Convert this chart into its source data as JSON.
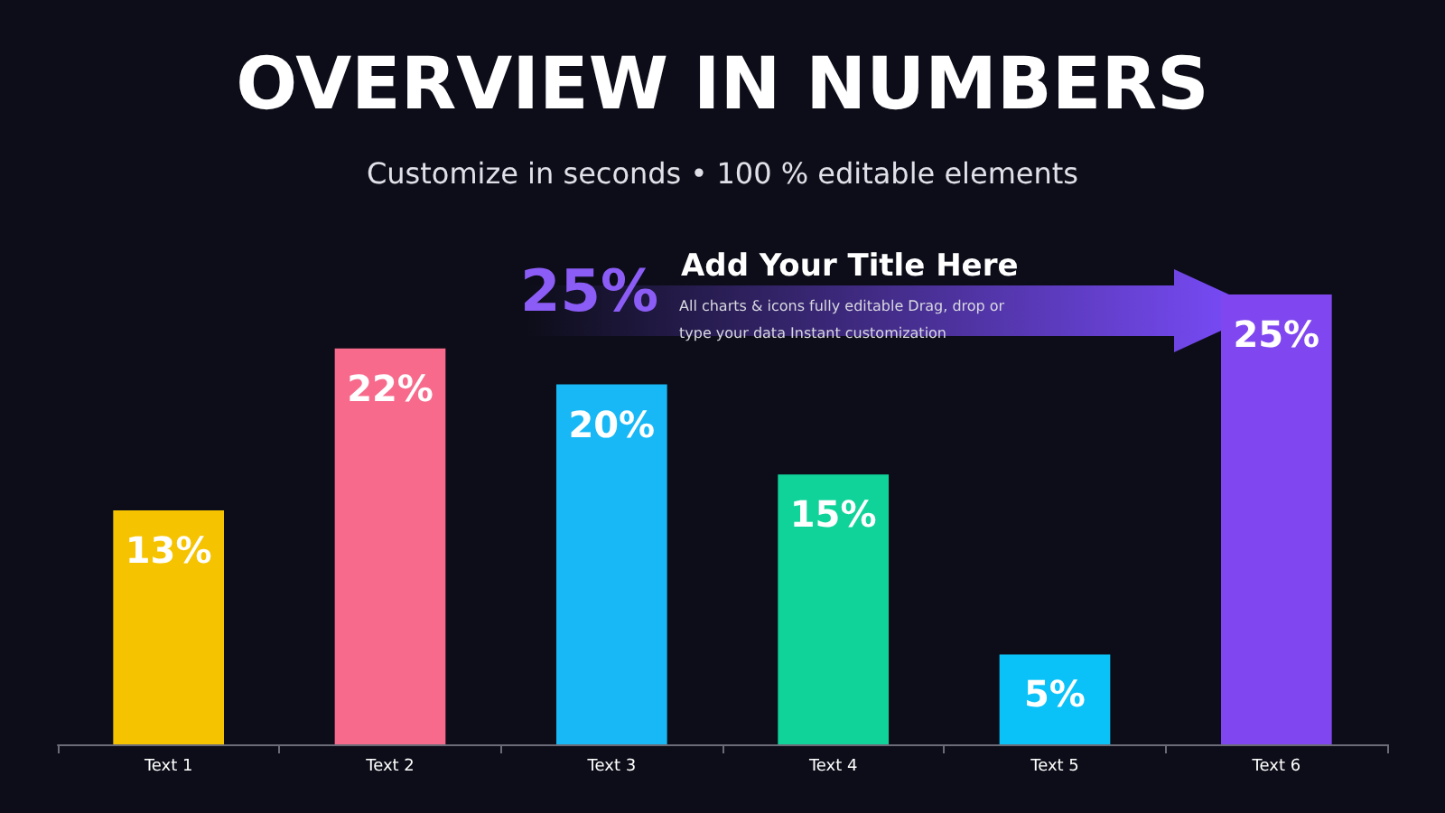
{
  "chart_data": {
    "type": "bar",
    "title": "OVERVIEW IN NUMBERS",
    "subtitle": "Customize in seconds • 100 % editable elements",
    "categories": [
      "Text 1",
      "Text 2",
      "Text 3",
      "Text 4",
      "Text 5",
      "Text 6"
    ],
    "values": [
      13,
      22,
      20,
      15,
      5,
      25
    ],
    "value_labels": [
      "13%",
      "22%",
      "20%",
      "15%",
      "5%",
      "25%"
    ],
    "colors": [
      "#f5c300",
      "#f76a8c",
      "#17b8f5",
      "#10d39a",
      "#0ac2f7",
      "#8047f0"
    ],
    "ylim": [
      0,
      25
    ],
    "grid": false,
    "annotations": [
      "25%",
      "Add Your Title Here",
      "All charts & icons fully editable Drag, drop or type your data Instant customization"
    ]
  }
}
